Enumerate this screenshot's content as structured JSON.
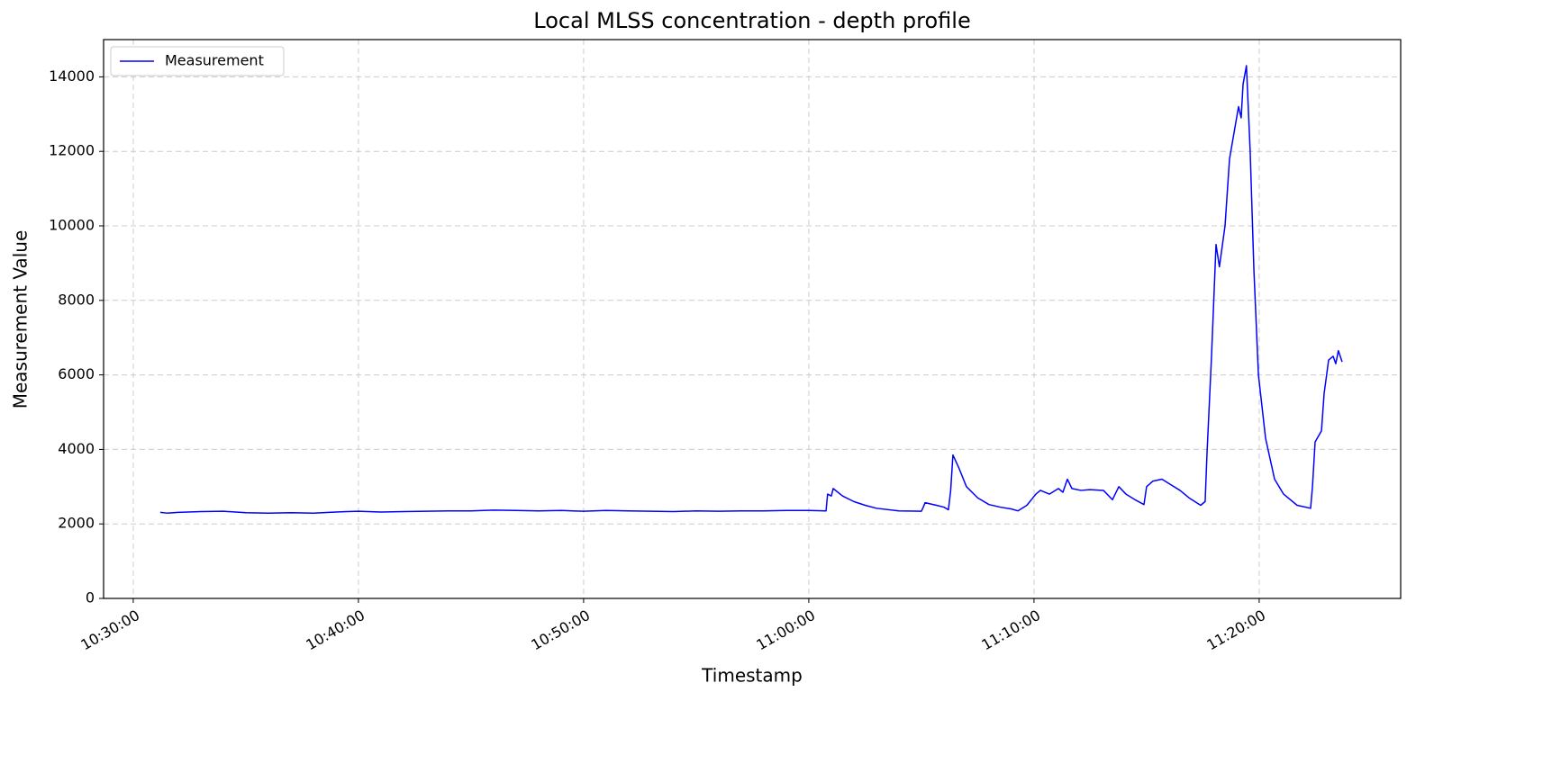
{
  "chart_data": {
    "type": "line",
    "title": "Local MLSS concentration - depth profile",
    "x_label": "Timestamp",
    "y_label": "Measurement Value",
    "x": [
      "10:31:12",
      "10:31:30",
      "10:32:00",
      "10:33:00",
      "10:34:00",
      "10:35:00",
      "10:36:00",
      "10:37:00",
      "10:38:00",
      "10:39:00",
      "10:40:00",
      "10:41:00",
      "10:42:00",
      "10:43:00",
      "10:44:00",
      "10:45:00",
      "10:46:00",
      "10:47:00",
      "10:48:00",
      "10:49:00",
      "10:50:00",
      "10:51:00",
      "10:52:00",
      "10:53:00",
      "10:54:00",
      "10:55:00",
      "10:56:00",
      "10:57:00",
      "10:58:00",
      "10:59:00",
      "11:00:00",
      "11:00:46",
      "11:00:50",
      "11:01:00",
      "11:01:05",
      "11:01:30",
      "11:02:00",
      "11:02:30",
      "11:03:00",
      "11:04:00",
      "11:05:00",
      "11:05:05",
      "11:05:10",
      "11:05:40",
      "11:06:00",
      "11:06:12",
      "11:06:18",
      "11:06:24",
      "11:06:40",
      "11:07:00",
      "11:07:30",
      "11:08:00",
      "11:08:30",
      "11:09:00",
      "11:09:17",
      "11:09:41",
      "11:10:05",
      "11:10:17",
      "11:10:41",
      "11:11:05",
      "11:11:17",
      "11:11:29",
      "11:11:41",
      "11:12:05",
      "11:12:29",
      "11:13:05",
      "11:13:29",
      "11:13:46",
      "11:14:05",
      "11:14:29",
      "11:14:53",
      "11:15:00",
      "11:15:17",
      "11:15:41",
      "11:16:05",
      "11:16:29",
      "11:16:53",
      "11:17:24",
      "11:17:36",
      "11:17:41",
      "11:17:53",
      "11:18:05",
      "11:18:14",
      "11:18:29",
      "11:18:41",
      "11:18:53",
      "11:19:05",
      "11:19:12",
      "11:19:17",
      "11:19:26",
      "11:19:36",
      "11:19:46",
      "11:19:58",
      "11:20:17",
      "11:20:41",
      "11:21:05",
      "11:21:41",
      "11:22:17",
      "11:22:22",
      "11:22:29",
      "11:22:46",
      "11:22:53",
      "11:23:05",
      "11:23:17",
      "11:23:24",
      "11:23:31",
      "11:23:41"
    ],
    "series": [
      {
        "name": "Measurement",
        "color": "blue",
        "values": [
          2310,
          2290,
          2310,
          2330,
          2340,
          2300,
          2290,
          2300,
          2290,
          2320,
          2340,
          2320,
          2330,
          2340,
          2350,
          2350,
          2370,
          2360,
          2350,
          2360,
          2340,
          2360,
          2350,
          2340,
          2330,
          2350,
          2340,
          2350,
          2350,
          2360,
          2360,
          2350,
          2800,
          2750,
          2950,
          2750,
          2600,
          2500,
          2420,
          2350,
          2340,
          2450,
          2570,
          2500,
          2450,
          2380,
          2900,
          3850,
          3500,
          3000,
          2700,
          2520,
          2450,
          2400,
          2350,
          2500,
          2800,
          2900,
          2800,
          2950,
          2850,
          3200,
          2950,
          2900,
          2920,
          2900,
          2650,
          3000,
          2800,
          2650,
          2520,
          3000,
          3150,
          3200,
          3050,
          2900,
          2700,
          2500,
          2600,
          3900,
          6500,
          9500,
          8900,
          10000,
          11800,
          12500,
          13200,
          12900,
          13800,
          14300,
          12000,
          8800,
          6000,
          4300,
          3200,
          2800,
          2500,
          2420,
          3000,
          4200,
          4500,
          5500,
          6400,
          6500,
          6300,
          6650,
          6350
        ]
      }
    ],
    "xlim": [
      "10:28:41",
      "11:26:17"
    ],
    "xticks": [
      "10:30:00",
      "10:40:00",
      "10:50:00",
      "11:00:00",
      "11:10:00",
      "11:20:00"
    ],
    "ylim": [
      0,
      15000
    ],
    "yticks": [
      0,
      2000,
      4000,
      6000,
      8000,
      10000,
      12000,
      14000
    ],
    "grid": true,
    "legend": "upper left"
  }
}
